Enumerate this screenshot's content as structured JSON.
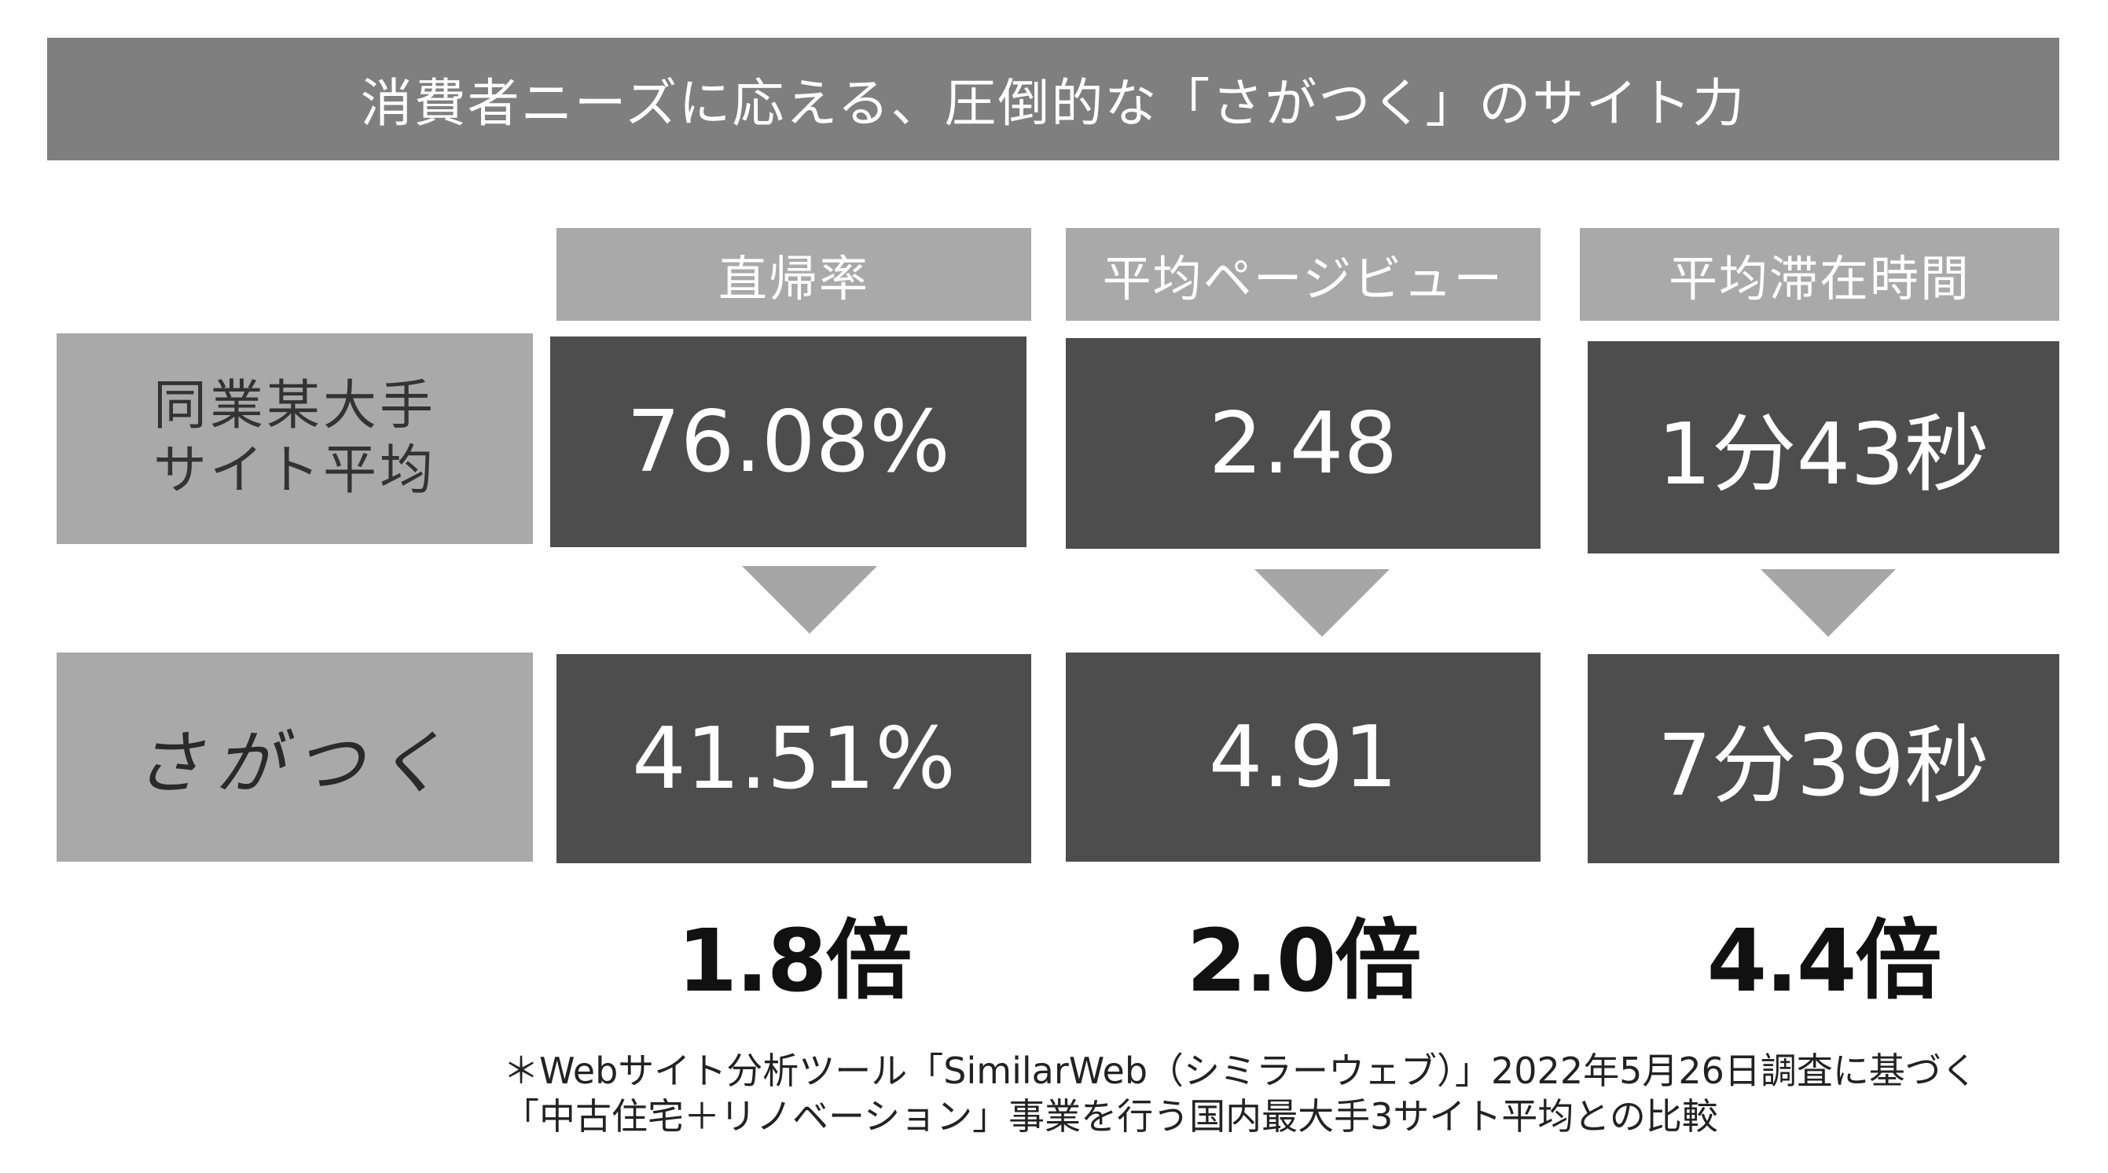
{
  "title": "消費者ニーズに応える、圧倒的な「さがつく」のサイト力",
  "columns": [
    {
      "header": "直帰率",
      "competitor": "76.08%",
      "sagatsuku": "41.51%",
      "ratio": "1.8倍"
    },
    {
      "header": "平均ページビュー",
      "competitor": "2.48",
      "sagatsuku": "4.91",
      "ratio": "2.0倍"
    },
    {
      "header": "平均滞在時間",
      "competitor": "1分43秒",
      "sagatsuku": "7分39秒",
      "ratio": "4.4倍"
    }
  ],
  "rows": {
    "competitor_line1": "同業某大手",
    "competitor_line2": "サイト平均",
    "sagatsuku": "さがつく"
  },
  "footnote": {
    "line1": "＊Webサイト分析ツール「SimilarWeb（シミラーウェブ）」2022年5月26日調査に基づく",
    "line2": "「中古住宅＋リノベーション」事業を行う国内最大手3サイト平均との比較"
  },
  "colors": {
    "title_bg": "#7f7f7f",
    "header_bg": "#a9a9a9",
    "value_bg": "#4d4d4d",
    "arrow": "#a6a6a6"
  }
}
